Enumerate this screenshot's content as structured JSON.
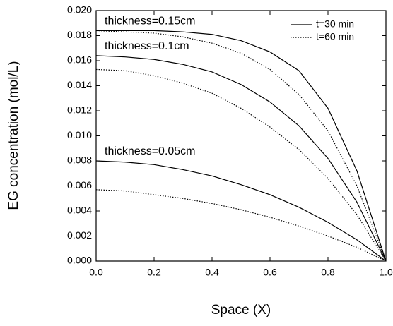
{
  "chart_data": {
    "type": "line",
    "xlabel": "Space (X)",
    "ylabel": "EG concentration (mol/L)",
    "x": [
      0,
      0.1,
      0.2,
      0.3,
      0.4,
      0.5,
      0.6,
      0.7,
      0.8,
      0.9,
      1.0
    ],
    "series": [
      {
        "style": "solid",
        "annotation": "thickness=0.15cm",
        "values": [
          0.0184,
          0.0184,
          0.0184,
          0.0183,
          0.0181,
          0.0176,
          0.0167,
          0.0152,
          0.0122,
          0.0072,
          0.0
        ]
      },
      {
        "style": "dotted",
        "values": [
          0.0184,
          0.0183,
          0.0182,
          0.0179,
          0.0174,
          0.0166,
          0.0153,
          0.0133,
          0.0104,
          0.006,
          0.0
        ]
      },
      {
        "style": "solid",
        "annotation": "thickness=0.1cm",
        "values": [
          0.0164,
          0.0163,
          0.0161,
          0.0157,
          0.0151,
          0.0141,
          0.0127,
          0.0108,
          0.0082,
          0.0047,
          0.0
        ]
      },
      {
        "style": "dotted",
        "values": [
          0.0153,
          0.0152,
          0.0148,
          0.0142,
          0.0134,
          0.0122,
          0.0107,
          0.0089,
          0.0066,
          0.0037,
          0.0
        ]
      },
      {
        "style": "solid",
        "annotation": "thickness=0.05cm",
        "values": [
          0.008,
          0.0079,
          0.0077,
          0.0073,
          0.0068,
          0.0061,
          0.0053,
          0.0043,
          0.0031,
          0.0017,
          0.0
        ]
      },
      {
        "style": "dotted",
        "values": [
          0.0057,
          0.0056,
          0.0053,
          0.005,
          0.0046,
          0.0041,
          0.0035,
          0.0028,
          0.002,
          0.0011,
          0.0
        ]
      }
    ],
    "legend": [
      {
        "name": "t=30 min",
        "style": "solid"
      },
      {
        "name": "t=60 min",
        "style": "dotted"
      }
    ],
    "legend_position": "upper right",
    "color": "#000000",
    "xlim": [
      0,
      1.0
    ],
    "xticks": [
      {
        "value": 0,
        "label": "0.0"
      },
      {
        "value": 0.2,
        "label": "0.2"
      },
      {
        "value": 0.4,
        "label": "0.4"
      },
      {
        "value": 0.6,
        "label": "0.6"
      },
      {
        "value": 0.8,
        "label": "0.8"
      },
      {
        "value": 1.0,
        "label": "1.0"
      }
    ],
    "ylim": [
      0,
      0.02
    ],
    "yticks": [
      {
        "value": 0,
        "label": "0.000"
      },
      {
        "value": 0.002,
        "label": "0.002"
      },
      {
        "value": 0.004,
        "label": "0.004"
      },
      {
        "value": 0.006,
        "label": "0.006"
      },
      {
        "value": 0.008,
        "label": "0.008"
      },
      {
        "value": 0.01,
        "label": "0.010"
      },
      {
        "value": 0.012,
        "label": "0.012"
      },
      {
        "value": 0.014,
        "label": "0.014"
      },
      {
        "value": 0.016,
        "label": "0.016"
      },
      {
        "value": 0.018,
        "label": "0.018"
      },
      {
        "value": 0.02,
        "label": "0.020"
      }
    ]
  }
}
